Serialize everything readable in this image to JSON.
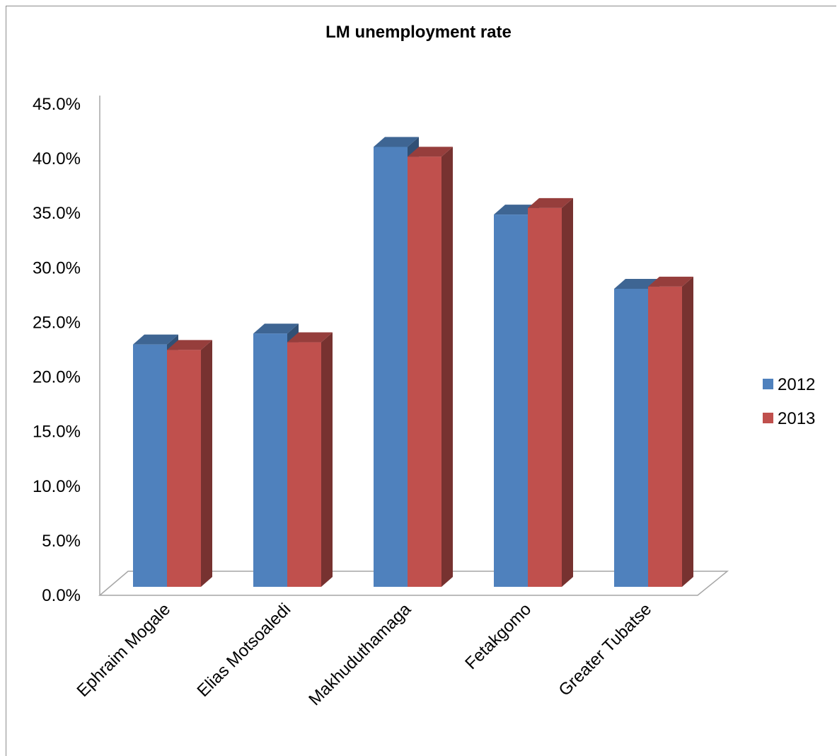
{
  "chart_data": {
    "type": "bar",
    "title": "LM unemployment rate",
    "categories": [
      "Ephraim Mogale",
      "Elias Motsoaledi",
      "Makhuduthamaga",
      "Fetakgomo",
      "Greater Tubatse"
    ],
    "series": [
      {
        "name": "2012",
        "values": [
          22.2,
          23.2,
          40.3,
          34.1,
          27.3
        ],
        "color": "#4F81BD"
      },
      {
        "name": "2013",
        "values": [
          21.7,
          22.4,
          39.4,
          34.7,
          27.5
        ],
        "color": "#C0504D"
      }
    ],
    "yticks": [
      "0.0%",
      "5.0%",
      "10.0%",
      "15.0%",
      "20.0%",
      "25.0%",
      "30.0%",
      "35.0%",
      "40.0%",
      "45.0%"
    ],
    "ylim": [
      0,
      45
    ],
    "legend_position": "right",
    "style": "3d-clustered-column"
  }
}
